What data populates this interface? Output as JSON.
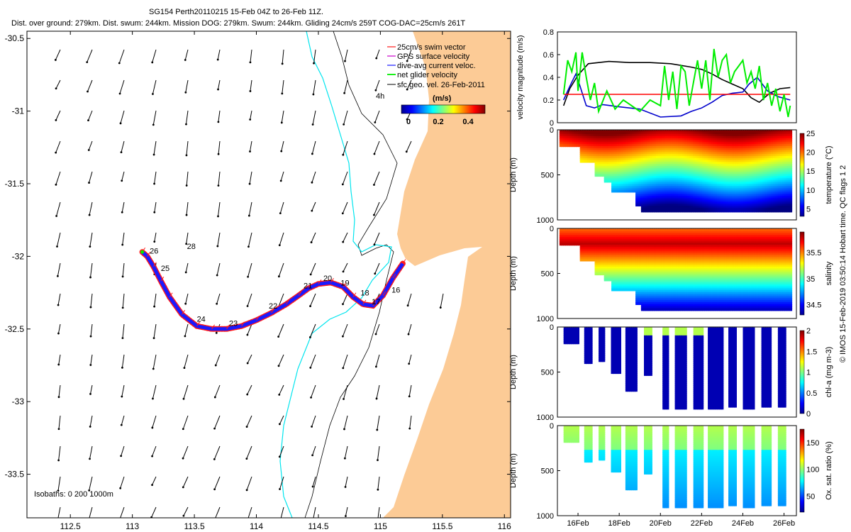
{
  "title": {
    "line1": "SG154 Perth20110215 15-Feb 04Z to 26-Feb 11Z.",
    "line2": "Dist. over ground: 279km. Dist. swum: 244km. Mission DOG: 279km. Swum: 244km. Gliding 24cm/s 259T COG-DAC=25cm/s 261T"
  },
  "colors": {
    "land": "#fccb96",
    "isobath_200": "#00e5ee",
    "track_blue": "#1a1aff",
    "track_red": "#ff1a1a",
    "ref_red": "#ff0000",
    "green": "#00ee00",
    "black": "#000000"
  },
  "chart_data": [
    {
      "type": "scatter",
      "subtype": "map",
      "xlim": [
        112.15,
        116.05
      ],
      "ylim": [
        -33.8,
        -30.45
      ],
      "x_ticks": [
        "112.5",
        "113",
        "113.5",
        "114",
        "114.5",
        "115",
        "115.5",
        "116"
      ],
      "y_ticks": [
        "-30.5",
        "-31",
        "-31.5",
        "-32",
        "-32.5",
        "-33",
        "-33.5"
      ],
      "legend": {
        "placement": "top-right",
        "entries": [
          "25cm/s swim vector",
          "GPS surface velocity",
          "dive-avg current veloc.",
          "net glider velocity",
          "sfc geo. vel. 26-Feb-2011"
        ],
        "scale_label": "4h",
        "colorbar_title": "(m/s)",
        "colorbar_ticks": [
          "0",
          "0.2",
          "0.4"
        ]
      },
      "isobaths_label": "Isobaths: 0   200  1000m",
      "day_labels": [
        {
          "text": "16",
          "lon": 115.09,
          "lat": -32.25
        },
        {
          "text": "17",
          "lon": 114.93,
          "lat": -32.33
        },
        {
          "text": "18",
          "lon": 114.84,
          "lat": -32.27
        },
        {
          "text": "19",
          "lon": 114.68,
          "lat": -32.2
        },
        {
          "text": "20",
          "lon": 114.54,
          "lat": -32.17
        },
        {
          "text": "21",
          "lon": 114.38,
          "lat": -32.22
        },
        {
          "text": "22",
          "lon": 114.1,
          "lat": -32.36
        },
        {
          "text": "23",
          "lon": 113.78,
          "lat": -32.48
        },
        {
          "text": "24",
          "lon": 113.52,
          "lat": -32.45
        },
        {
          "text": "25",
          "lon": 113.23,
          "lat": -32.1
        },
        {
          "text": "26",
          "lon": 113.14,
          "lat": -31.98
        },
        {
          "text": "28",
          "lon": 113.44,
          "lat": -31.95
        }
      ],
      "track": {
        "lon": [
          115.18,
          115.1,
          115.02,
          114.94,
          114.86,
          114.78,
          114.7,
          114.6,
          114.5,
          114.42,
          114.34,
          114.24,
          114.12,
          114.0,
          113.88,
          113.76,
          113.64,
          113.52,
          113.4,
          113.3,
          113.23,
          113.17,
          113.12,
          113.08
        ],
        "lat": [
          -32.05,
          -32.15,
          -32.27,
          -32.34,
          -32.33,
          -32.28,
          -32.21,
          -32.18,
          -32.19,
          -32.22,
          -32.27,
          -32.33,
          -32.39,
          -32.44,
          -32.48,
          -32.5,
          -32.5,
          -32.48,
          -32.4,
          -32.28,
          -32.17,
          -32.07,
          -32.0,
          -31.97
        ]
      }
    },
    {
      "type": "line",
      "ylabel": "velocity magnitude (m/s)",
      "ylim": [
        0,
        0.8
      ],
      "y_ticks": [
        "0",
        "0.2",
        "0.4",
        "0.6",
        "0.8"
      ],
      "series": [
        {
          "color": "#000000",
          "x": [
            15.3,
            15.6,
            16.0,
            16.5,
            17.5,
            18.5,
            19.5,
            20.5,
            21.5,
            22.0,
            22.5,
            23.0,
            23.5,
            24.0,
            24.4,
            24.8,
            25.3,
            25.8,
            26.3
          ],
          "values": [
            0.15,
            0.3,
            0.42,
            0.52,
            0.54,
            0.53,
            0.53,
            0.52,
            0.49,
            0.47,
            0.43,
            0.38,
            0.34,
            0.3,
            0.22,
            0.18,
            0.26,
            0.3,
            0.31
          ]
        },
        {
          "color": "#0000cc",
          "x": [
            15.3,
            15.6,
            15.9,
            16.1,
            16.4,
            16.8,
            17.2,
            18.0,
            19.0,
            20.0,
            21.0,
            21.5,
            22.0,
            22.5,
            23.0,
            23.5,
            24.0,
            24.3,
            24.7,
            25.2,
            25.7,
            26.3
          ],
          "values": [
            0.2,
            0.32,
            0.43,
            0.32,
            0.15,
            0.13,
            0.16,
            0.14,
            0.12,
            0.05,
            0.06,
            0.1,
            0.13,
            0.18,
            0.24,
            0.26,
            0.27,
            0.34,
            0.4,
            0.28,
            0.23,
            0.2
          ]
        },
        {
          "color": "#ff0000",
          "x": [
            15.3,
            26.3
          ],
          "values": [
            0.25,
            0.25
          ]
        },
        {
          "color": "#00ee00",
          "x": [
            15.3,
            15.5,
            15.7,
            15.9,
            16.0,
            16.2,
            16.4,
            16.6,
            16.8,
            17.0,
            17.4,
            17.8,
            18.2,
            18.6,
            19.0,
            19.5,
            20.0,
            20.2,
            20.4,
            20.6,
            20.8,
            21.0,
            21.2,
            21.4,
            21.6,
            21.8,
            22.0,
            22.2,
            22.4,
            22.6,
            22.8,
            23.0,
            23.2,
            23.4,
            23.6,
            23.8,
            24.0,
            24.2,
            24.4,
            24.6,
            24.8,
            25.0,
            25.2,
            25.4,
            25.6,
            25.8,
            26.0,
            26.2,
            26.3
          ],
          "values": [
            0.25,
            0.55,
            0.45,
            0.62,
            0.28,
            0.62,
            0.4,
            0.2,
            0.35,
            0.1,
            0.28,
            0.12,
            0.2,
            0.15,
            0.1,
            0.2,
            0.15,
            0.5,
            0.2,
            0.45,
            0.12,
            0.5,
            0.45,
            0.15,
            0.35,
            0.55,
            0.3,
            0.55,
            0.2,
            0.65,
            0.4,
            0.55,
            0.6,
            0.35,
            0.45,
            0.5,
            0.55,
            0.35,
            0.45,
            0.3,
            0.5,
            0.2,
            0.35,
            0.15,
            0.3,
            0.1,
            0.25,
            0.05,
            0.15
          ]
        }
      ]
    },
    {
      "type": "heatmap",
      "ylabel": "Depth (m)",
      "colorbar_label": "temperature (°C)",
      "clim": [
        3,
        25
      ],
      "colorbar_ticks": [
        "5",
        "10",
        "15",
        "20",
        "25"
      ],
      "ylim": [
        1000,
        0
      ],
      "y_ticks": [
        "0",
        "500",
        "1000"
      ]
    },
    {
      "type": "heatmap",
      "ylabel": "Depth (m)",
      "colorbar_label": "salinity",
      "clim": [
        34.3,
        35.9
      ],
      "colorbar_ticks": [
        "34.5",
        "35",
        "35.5"
      ],
      "ylim": [
        1000,
        0
      ],
      "y_ticks": [
        "0",
        "500",
        "1000"
      ]
    },
    {
      "type": "heatmap",
      "ylabel": "Depth (m)",
      "colorbar_label": "chl-a (mg m-3)",
      "clim": [
        0,
        2
      ],
      "colorbar_ticks": [
        "0",
        "0.5",
        "1",
        "1.5",
        "2"
      ],
      "ylim": [
        1000,
        0
      ],
      "y_ticks": [
        "0",
        "500",
        "1000"
      ]
    },
    {
      "type": "heatmap",
      "ylabel": "Depth (m)",
      "colorbar_label": "Ox. sat. ratio (%)",
      "clim": [
        20,
        175
      ],
      "colorbar_ticks": [
        "50",
        "100",
        "150"
      ],
      "ylim": [
        1000,
        0
      ],
      "y_ticks": [
        "0",
        "500",
        "1000"
      ],
      "x_ticks": [
        "16Feb",
        "18Feb",
        "20Feb",
        "22Feb",
        "24Feb",
        "26Feb"
      ],
      "xlim": [
        15.0,
        26.6
      ]
    }
  ],
  "side_note": "© IMOS 15-Feb-2019 03:50:14 Hobart time. QC flags 1  2"
}
